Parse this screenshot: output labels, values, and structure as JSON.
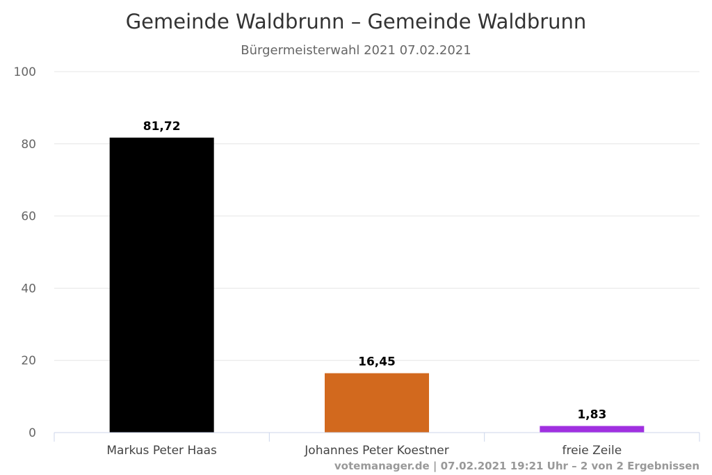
{
  "chart_data": {
    "type": "bar",
    "title": "Gemeinde Waldbrunn – Gemeinde Waldbrunn",
    "subtitle": "Bürgermeisterwahl 2021 07.02.2021",
    "categories": [
      "Markus Peter Haas",
      "Johannes Peter Koestner",
      "freie Zeile"
    ],
    "values": [
      81.72,
      16.45,
      1.83
    ],
    "value_labels": [
      "81,72",
      "16,45",
      "1,83"
    ],
    "colors": [
      "#000000",
      "#d2691e",
      "#a030e0"
    ],
    "ylim": [
      0,
      100
    ],
    "yticks": [
      0,
      20,
      40,
      60,
      80,
      100
    ],
    "grid": true,
    "xlabel": "",
    "ylabel": ""
  },
  "credits": "votemanager.de | 07.02.2021 19:21 Uhr – 2 von 2 Ergebnissen"
}
